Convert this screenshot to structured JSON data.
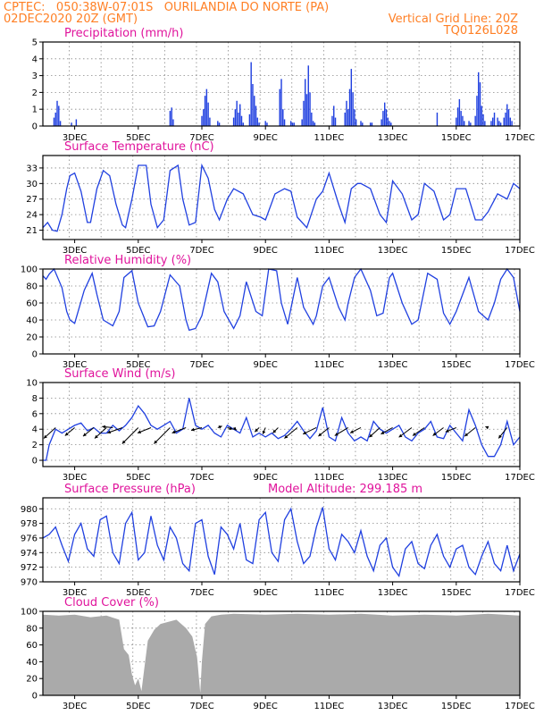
{
  "header": {
    "line1": "CPTEC:   050:38W-07:01S   OURILANDIA DO NORTE (PA)",
    "line2_left": "02DEC2020 20Z (GMT)",
    "line2_right": "Vertical Grid Line: 20Z",
    "line3_right": "TQ0126L028"
  },
  "colors": {
    "header": "#ff7f24",
    "title": "#e0149c",
    "series": "#2040e0",
    "bar": "#2040e0",
    "cloud": "#aaaaaa"
  },
  "x_ticks": [
    "3DEC",
    "5DEC",
    "7DEC",
    "9DEC",
    "11DEC",
    "13DEC",
    "15DEC",
    "17DEC"
  ],
  "chart_data": [
    {
      "type": "bar",
      "title": "Precipitation (mm/h)",
      "ylim": [
        0,
        5
      ],
      "yticks": [
        "0",
        "1",
        "2",
        "3",
        "4",
        "5"
      ],
      "x_range_days": [
        2.0,
        17.0
      ],
      "bars": [
        [
          2.35,
          0.5
        ],
        [
          2.4,
          0.8
        ],
        [
          2.45,
          1.5
        ],
        [
          2.5,
          1.2
        ],
        [
          2.55,
          0.3
        ],
        [
          2.9,
          0.2
        ],
        [
          3.05,
          0.4
        ],
        [
          6.0,
          0.9
        ],
        [
          6.05,
          1.1
        ],
        [
          6.1,
          0.4
        ],
        [
          7.0,
          0.6
        ],
        [
          7.05,
          1.0
        ],
        [
          7.1,
          1.8
        ],
        [
          7.15,
          2.2
        ],
        [
          7.2,
          1.4
        ],
        [
          7.25,
          0.5
        ],
        [
          7.5,
          0.3
        ],
        [
          7.55,
          0.2
        ],
        [
          8.0,
          0.5
        ],
        [
          8.05,
          1.0
        ],
        [
          8.1,
          1.5
        ],
        [
          8.15,
          0.8
        ],
        [
          8.2,
          1.3
        ],
        [
          8.25,
          0.6
        ],
        [
          8.3,
          0.2
        ],
        [
          8.5,
          0.7
        ],
        [
          8.55,
          3.8
        ],
        [
          8.6,
          2.5
        ],
        [
          8.65,
          1.8
        ],
        [
          8.7,
          1.2
        ],
        [
          8.75,
          0.5
        ],
        [
          8.8,
          0.2
        ],
        [
          9.0,
          0.3
        ],
        [
          9.05,
          0.2
        ],
        [
          9.45,
          2.2
        ],
        [
          9.5,
          2.8
        ],
        [
          9.55,
          1.0
        ],
        [
          9.6,
          0.4
        ],
        [
          9.8,
          0.3
        ],
        [
          9.85,
          0.2
        ],
        [
          9.9,
          0.2
        ],
        [
          10.15,
          0.4
        ],
        [
          10.2,
          1.5
        ],
        [
          10.25,
          2.8
        ],
        [
          10.3,
          1.9
        ],
        [
          10.35,
          3.6
        ],
        [
          10.4,
          2.0
        ],
        [
          10.45,
          0.8
        ],
        [
          10.5,
          0.3
        ],
        [
          10.55,
          0.2
        ],
        [
          11.1,
          0.6
        ],
        [
          11.15,
          1.2
        ],
        [
          11.2,
          0.5
        ],
        [
          11.5,
          0.8
        ],
        [
          11.55,
          1.5
        ],
        [
          11.6,
          1.0
        ],
        [
          11.65,
          2.2
        ],
        [
          11.7,
          3.4
        ],
        [
          11.75,
          2.0
        ],
        [
          11.8,
          1.0
        ],
        [
          11.85,
          0.4
        ],
        [
          12.0,
          0.3
        ],
        [
          12.05,
          0.2
        ],
        [
          12.3,
          0.2
        ],
        [
          12.35,
          0.2
        ],
        [
          12.65,
          0.4
        ],
        [
          12.7,
          0.9
        ],
        [
          12.75,
          1.4
        ],
        [
          12.8,
          1.0
        ],
        [
          12.85,
          0.5
        ],
        [
          12.9,
          0.3
        ],
        [
          12.95,
          0.2
        ],
        [
          14.4,
          0.8
        ],
        [
          15.0,
          0.5
        ],
        [
          15.05,
          1.1
        ],
        [
          15.1,
          1.6
        ],
        [
          15.15,
          0.9
        ],
        [
          15.2,
          0.6
        ],
        [
          15.25,
          0.3
        ],
        [
          15.4,
          0.3
        ],
        [
          15.45,
          0.2
        ],
        [
          15.6,
          0.6
        ],
        [
          15.65,
          1.8
        ],
        [
          15.7,
          3.2
        ],
        [
          15.75,
          2.6
        ],
        [
          15.8,
          1.2
        ],
        [
          15.85,
          0.7
        ],
        [
          15.9,
          0.3
        ],
        [
          16.1,
          0.3
        ],
        [
          16.15,
          0.5
        ],
        [
          16.2,
          0.8
        ],
        [
          16.3,
          0.5
        ],
        [
          16.35,
          0.3
        ],
        [
          16.4,
          0.2
        ],
        [
          16.5,
          0.5
        ],
        [
          16.55,
          0.8
        ],
        [
          16.6,
          1.3
        ],
        [
          16.65,
          1.0
        ],
        [
          16.7,
          0.5
        ],
        [
          16.75,
          0.3
        ]
      ]
    },
    {
      "type": "line",
      "title": "Surface Temperature (nC)",
      "ylim": [
        19.2,
        35.4
      ],
      "yticks": [
        "21",
        "24",
        "27",
        "30",
        "33"
      ],
      "ytick_values": [
        21,
        24,
        27,
        30,
        33
      ],
      "x": [
        2.0,
        2.15,
        2.3,
        2.45,
        2.6,
        2.75,
        2.85,
        3.0,
        3.2,
        3.4,
        3.5,
        3.7,
        3.9,
        4.1,
        4.3,
        4.5,
        4.6,
        4.8,
        5.0,
        5.25,
        5.4,
        5.6,
        5.8,
        6.0,
        6.25,
        6.4,
        6.6,
        6.8,
        7.0,
        7.2,
        7.4,
        7.55,
        7.8,
        8.0,
        8.3,
        8.6,
        8.85,
        9.0,
        9.3,
        9.6,
        9.8,
        10.0,
        10.3,
        10.6,
        10.8,
        11.0,
        11.3,
        11.5,
        11.7,
        11.9,
        12.0,
        12.3,
        12.6,
        12.8,
        13.0,
        13.3,
        13.6,
        13.8,
        14.0,
        14.3,
        14.6,
        14.8,
        15.0,
        15.3,
        15.6,
        15.8,
        16.0,
        16.3,
        16.6,
        16.8,
        17.0
      ],
      "y": [
        21.5,
        22.5,
        21.0,
        20.8,
        24.0,
        29.0,
        31.5,
        32.0,
        28.5,
        22.5,
        22.5,
        29.0,
        32.5,
        31.5,
        26.0,
        22.0,
        21.5,
        27.0,
        33.5,
        33.5,
        26.0,
        21.5,
        23.0,
        32.5,
        33.5,
        27.0,
        22.0,
        22.5,
        33.5,
        31.0,
        25.0,
        23.0,
        27.0,
        29.0,
        28.0,
        24.0,
        23.5,
        23.0,
        28.0,
        29.0,
        28.5,
        23.5,
        21.5,
        27.0,
        28.5,
        32.0,
        26.0,
        22.5,
        29.0,
        30.0,
        30.0,
        29.0,
        24.0,
        22.5,
        30.5,
        28.0,
        23.0,
        24.0,
        30.0,
        28.5,
        23.0,
        24.0,
        29.0,
        29.0,
        23.0,
        23.0,
        24.5,
        28.0,
        27.0,
        30.0,
        29.0
      ]
    },
    {
      "type": "line",
      "title": "Relative Humidity (%)",
      "ylim": [
        0,
        100
      ],
      "yticks": [
        "0",
        "20",
        "40",
        "60",
        "80",
        "100"
      ],
      "ytick_values": [
        0,
        20,
        40,
        60,
        80,
        100
      ],
      "x": [
        2.0,
        2.1,
        2.2,
        2.35,
        2.6,
        2.75,
        2.85,
        3.0,
        3.3,
        3.55,
        3.7,
        3.9,
        4.2,
        4.4,
        4.55,
        4.8,
        5.0,
        5.3,
        5.5,
        5.7,
        6.0,
        6.3,
        6.5,
        6.6,
        6.8,
        7.0,
        7.3,
        7.5,
        7.7,
        8.0,
        8.2,
        8.4,
        8.7,
        8.9,
        9.1,
        9.35,
        9.5,
        9.7,
        10.0,
        10.2,
        10.5,
        10.6,
        10.8,
        11.0,
        11.3,
        11.5,
        11.6,
        11.8,
        12.0,
        12.3,
        12.5,
        12.7,
        12.9,
        13.0,
        13.3,
        13.6,
        13.8,
        14.1,
        14.4,
        14.6,
        14.8,
        15.0,
        15.4,
        15.7,
        16.0,
        16.2,
        16.4,
        16.6,
        16.8,
        17.0
      ],
      "y": [
        92.0,
        88.0,
        94.0,
        100.0,
        78.0,
        50.0,
        40.0,
        36.0,
        75.0,
        95.0,
        70.0,
        40.0,
        33.0,
        50.0,
        90.0,
        98.0,
        60.0,
        32.0,
        33.0,
        50.0,
        93.0,
        80.0,
        40.0,
        28.0,
        30.0,
        45.0,
        95.0,
        85.0,
        50.0,
        30.0,
        45.0,
        85.0,
        50.0,
        45.0,
        100.0,
        98.0,
        60.0,
        35.0,
        90.0,
        55.0,
        35.0,
        45.0,
        80.0,
        90.0,
        55.0,
        40.0,
        60.0,
        90.0,
        100.0,
        75.0,
        45.0,
        48.0,
        90.0,
        95.0,
        60.0,
        35.0,
        40.0,
        95.0,
        88.0,
        48.0,
        35.0,
        50.0,
        90.0,
        50.0,
        40.0,
        60.0,
        88.0,
        100.0,
        90.0,
        50.0
      ]
    },
    {
      "type": "line",
      "title": "Surface Wind (m/s)",
      "ylim": [
        -0.8,
        10
      ],
      "yticks": [
        "0",
        "2",
        "4",
        "6",
        "8",
        "10"
      ],
      "ytick_values": [
        0,
        2,
        4,
        6,
        8,
        10
      ],
      "x": [
        2.0,
        2.1,
        2.2,
        2.4,
        2.6,
        2.8,
        3.0,
        3.2,
        3.4,
        3.6,
        3.8,
        4.0,
        4.2,
        4.4,
        4.6,
        4.8,
        5.0,
        5.2,
        5.4,
        5.6,
        5.8,
        6.0,
        6.2,
        6.4,
        6.6,
        6.8,
        7.0,
        7.2,
        7.4,
        7.6,
        7.8,
        8.0,
        8.2,
        8.4,
        8.6,
        8.8,
        9.0,
        9.2,
        9.4,
        9.6,
        9.8,
        10.0,
        10.2,
        10.4,
        10.6,
        10.8,
        11.0,
        11.2,
        11.4,
        11.6,
        11.8,
        12.0,
        12.2,
        12.4,
        12.6,
        12.8,
        13.0,
        13.2,
        13.4,
        13.6,
        13.8,
        14.0,
        14.2,
        14.4,
        14.6,
        14.8,
        15.0,
        15.2,
        15.4,
        15.6,
        15.8,
        16.0,
        16.2,
        16.4,
        16.6,
        16.8,
        17.0
      ],
      "y": [
        0.0,
        0.0,
        2.0,
        4.0,
        3.5,
        4.0,
        4.5,
        4.8,
        3.8,
        4.2,
        3.5,
        3.5,
        4.5,
        3.8,
        4.5,
        5.5,
        7.0,
        6.0,
        4.5,
        4.0,
        4.5,
        5.0,
        3.5,
        4.0,
        8.0,
        4.5,
        4.0,
        4.5,
        3.5,
        3.0,
        4.5,
        4.0,
        3.5,
        5.5,
        3.0,
        3.5,
        3.0,
        3.5,
        2.8,
        3.2,
        4.0,
        5.0,
        3.8,
        2.8,
        3.8,
        6.8,
        3.0,
        2.5,
        5.5,
        3.5,
        2.5,
        3.0,
        2.5,
        5.0,
        4.0,
        3.5,
        4.0,
        4.5,
        3.0,
        2.5,
        3.5,
        4.0,
        5.0,
        3.0,
        2.8,
        4.5,
        3.5,
        2.5,
        6.5,
        4.5,
        2.0,
        0.5,
        0.5,
        2.0,
        5.0,
        2.0,
        3.0
      ],
      "arrows": [
        [
          2.4,
          -2.2,
          -2.0
        ],
        [
          3.0,
          -1.8,
          -1.5
        ],
        [
          3.6,
          -2.0,
          -1.6
        ],
        [
          4.0,
          -2.2,
          -2.0
        ],
        [
          4.2,
          -2.0,
          0.2
        ],
        [
          4.5,
          -2.8,
          -1.0
        ],
        [
          5.0,
          -3.0,
          -3.0
        ],
        [
          5.4,
          -2.5,
          -1.0
        ],
        [
          6.0,
          -3.0,
          -3.0
        ],
        [
          6.5,
          -2.6,
          -1.0
        ],
        [
          7.0,
          -2.0,
          -0.5
        ],
        [
          7.5,
          0.8,
          0.3
        ],
        [
          7.8,
          1.0,
          -0.3
        ],
        [
          8.0,
          0.5,
          -0.5
        ],
        [
          8.8,
          -0.8,
          -0.8
        ],
        [
          9.0,
          -0.5,
          -1.2
        ],
        [
          9.4,
          -1.0,
          -1.0
        ],
        [
          10.0,
          -2.4,
          -2.0
        ],
        [
          10.6,
          -2.5,
          -1.2
        ],
        [
          11.0,
          -2.0,
          -1.6
        ],
        [
          11.6,
          -2.5,
          -1.5
        ],
        [
          12.0,
          -2.0,
          -1.0
        ],
        [
          12.6,
          -2.0,
          -1.8
        ],
        [
          13.0,
          -2.2,
          -1.2
        ],
        [
          13.6,
          -2.4,
          -1.8
        ],
        [
          14.0,
          -2.2,
          -1.5
        ],
        [
          14.6,
          -2.0,
          -1.5
        ],
        [
          15.0,
          -2.0,
          -0.8
        ],
        [
          15.6,
          -2.0,
          -1.6
        ],
        [
          16.0,
          -0.5,
          0.2
        ],
        [
          16.6,
          -1.6,
          -2.0
        ]
      ]
    },
    {
      "type": "line",
      "title": "Surface Pressure (hPa)",
      "annotation": "Model Altitude: 299.185 m",
      "ylim": [
        970,
        981.5
      ],
      "yticks": [
        "970",
        "972",
        "974",
        "976",
        "978",
        "980"
      ],
      "ytick_values": [
        970,
        972,
        974,
        976,
        978,
        980
      ],
      "x": [
        2.0,
        2.2,
        2.4,
        2.6,
        2.8,
        3.0,
        3.2,
        3.4,
        3.6,
        3.8,
        4.0,
        4.2,
        4.4,
        4.6,
        4.8,
        5.0,
        5.2,
        5.4,
        5.6,
        5.8,
        6.0,
        6.2,
        6.4,
        6.6,
        6.8,
        7.0,
        7.2,
        7.4,
        7.6,
        7.8,
        8.0,
        8.2,
        8.4,
        8.6,
        8.8,
        9.0,
        9.2,
        9.4,
        9.6,
        9.8,
        10.0,
        10.2,
        10.4,
        10.6,
        10.8,
        11.0,
        11.2,
        11.4,
        11.6,
        11.8,
        12.0,
        12.2,
        12.4,
        12.6,
        12.8,
        13.0,
        13.2,
        13.4,
        13.6,
        13.8,
        14.0,
        14.2,
        14.4,
        14.6,
        14.8,
        15.0,
        15.2,
        15.4,
        15.6,
        15.8,
        16.0,
        16.2,
        16.4,
        16.6,
        16.8,
        17.0
      ],
      "y": [
        976.0,
        976.5,
        977.5,
        975.0,
        972.8,
        976.5,
        978.0,
        974.5,
        973.5,
        978.5,
        979.0,
        974.0,
        972.5,
        978.0,
        979.5,
        973.0,
        974.0,
        979.0,
        975.0,
        973.0,
        977.5,
        976.0,
        972.5,
        971.5,
        978.0,
        978.5,
        973.5,
        971.0,
        977.5,
        976.5,
        974.5,
        978.0,
        973.0,
        972.5,
        978.5,
        979.5,
        974.0,
        972.8,
        978.5,
        980.0,
        975.5,
        972.5,
        973.5,
        977.5,
        980.2,
        974.5,
        973.0,
        976.5,
        975.5,
        974.0,
        977.0,
        973.5,
        971.5,
        975.0,
        976.0,
        972.0,
        970.8,
        974.5,
        975.5,
        972.5,
        971.8,
        975.0,
        976.5,
        973.5,
        972.0,
        974.5,
        975.0,
        972.0,
        971.0,
        973.5,
        975.5,
        972.5,
        971.5,
        975.0,
        971.5,
        973.8
      ]
    },
    {
      "type": "area",
      "title": "Cloud Cover (%)",
      "ylim": [
        0,
        100
      ],
      "yticks": [
        "0",
        "20",
        "40",
        "60",
        "80",
        "100"
      ],
      "ytick_values": [
        0,
        20,
        40,
        60,
        80,
        100
      ],
      "x": [
        2.0,
        2.5,
        3.0,
        3.5,
        4.0,
        4.4,
        4.55,
        4.7,
        4.8,
        4.9,
        5.0,
        5.1,
        5.2,
        5.3,
        5.5,
        5.7,
        6.0,
        6.2,
        6.5,
        6.7,
        6.85,
        6.95,
        7.0,
        7.1,
        7.3,
        7.6,
        8.0,
        9.0,
        10.0,
        11.0,
        12.0,
        13.0,
        14.0,
        15.0,
        16.0,
        17.0
      ],
      "y": [
        96.0,
        95.0,
        96.0,
        93.0,
        95.0,
        90.0,
        55.0,
        48.0,
        25.0,
        12.0,
        20.0,
        5.0,
        35.0,
        65.0,
        78.0,
        85.0,
        88.0,
        90.0,
        80.0,
        70.0,
        45.0,
        3.0,
        40.0,
        85.0,
        94.0,
        96.0,
        97.0,
        96.0,
        97.0,
        96.0,
        97.0,
        95.0,
        96.0,
        95.0,
        97.0,
        95.0
      ]
    }
  ]
}
